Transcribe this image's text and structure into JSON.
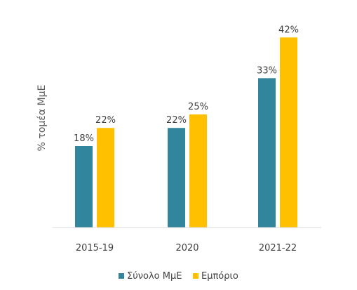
{
  "chart_data": {
    "type": "bar",
    "title": "",
    "xlabel": "",
    "ylabel": "% τομέα ΜμΕ",
    "categories": [
      "2015-19",
      "2020",
      "2021-22"
    ],
    "series": [
      {
        "name": "Σύνολο ΜμΕ",
        "values": [
          18,
          22,
          33
        ],
        "labels": [
          "18%",
          "22%",
          "33%"
        ],
        "color": "#31859C"
      },
      {
        "name": "Εμπόριο",
        "values": [
          22,
          25,
          42
        ],
        "labels": [
          "22%",
          "25%",
          "42%"
        ],
        "color": "#FFC000"
      }
    ],
    "ylim": [
      0,
      45
    ],
    "grid": false,
    "legend_position": "bottom"
  }
}
